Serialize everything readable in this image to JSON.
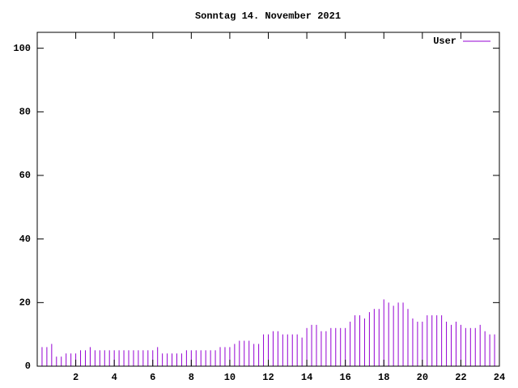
{
  "chart_data": {
    "type": "impulses",
    "title": "Sonntag 14. November 2021",
    "x": [
      0,
      0.25,
      0.5,
      0.75,
      1,
      1.25,
      1.5,
      1.75,
      2,
      2.25,
      2.5,
      2.75,
      3,
      3.25,
      3.5,
      3.75,
      4,
      4.25,
      4.5,
      4.75,
      5,
      5.25,
      5.5,
      5.75,
      6,
      6.25,
      6.5,
      6.75,
      7,
      7.25,
      7.5,
      7.75,
      8,
      8.25,
      8.5,
      8.75,
      9,
      9.25,
      9.5,
      9.75,
      10,
      10.25,
      10.5,
      10.75,
      11,
      11.25,
      11.5,
      11.75,
      12,
      12.25,
      12.5,
      12.75,
      13,
      13.25,
      13.5,
      13.75,
      14,
      14.25,
      14.5,
      14.75,
      15,
      15.25,
      15.5,
      15.75,
      16,
      16.25,
      16.5,
      16.75,
      17,
      17.25,
      17.5,
      17.75,
      18,
      18.25,
      18.5,
      18.75,
      19,
      19.25,
      19.5,
      19.75,
      20,
      20.25,
      20.5,
      20.75,
      21,
      21.25,
      21.5,
      21.75,
      22,
      22.25,
      22.5,
      22.75,
      23,
      23.25,
      23.5,
      23.75
    ],
    "series": [
      {
        "name": "User",
        "color": "#9400d3",
        "values": [
          7,
          6,
          6,
          7,
          3,
          3,
          4,
          4,
          4,
          5,
          5,
          6,
          5,
          5,
          5,
          5,
          5,
          5,
          5,
          5,
          5,
          5,
          5,
          5,
          5,
          6,
          4,
          4,
          4,
          4,
          4,
          5,
          5,
          5,
          5,
          5,
          5,
          5,
          6,
          6,
          6,
          7,
          8,
          8,
          8,
          7,
          7,
          10,
          10,
          11,
          11,
          10,
          10,
          10,
          10,
          9,
          12,
          13,
          13,
          11,
          11,
          12,
          12,
          12,
          12,
          14,
          16,
          16,
          15,
          17,
          18,
          18,
          21,
          20,
          19,
          20,
          20,
          18,
          15,
          14,
          14,
          16,
          16,
          16,
          16,
          14,
          13,
          14,
          13,
          12,
          12,
          12,
          13,
          11,
          10,
          10
        ]
      }
    ],
    "xlim": [
      0,
      24
    ],
    "xticks": [
      2,
      4,
      6,
      8,
      10,
      12,
      14,
      16,
      18,
      20,
      22,
      24
    ],
    "ylim": [
      0,
      105
    ],
    "yticks": [
      0,
      20,
      40,
      60,
      80,
      100
    ],
    "legend": "upper right"
  }
}
